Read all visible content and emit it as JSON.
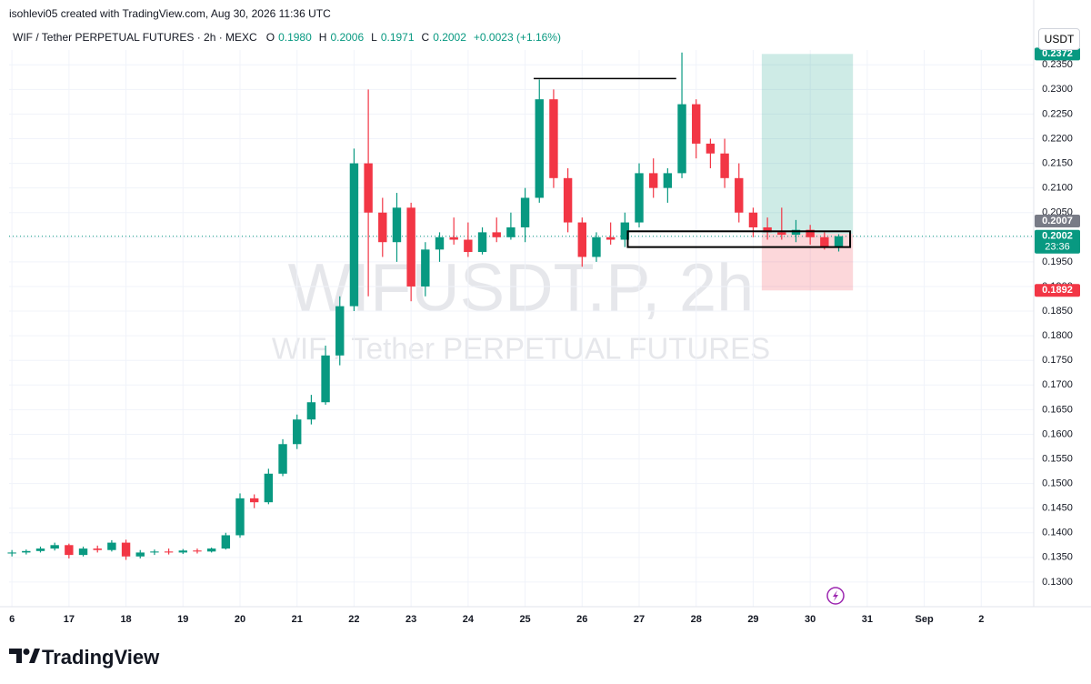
{
  "page": {
    "credit": "isohlevi05 created with TradingView.com, Aug 30, 2026 11:36 UTC",
    "brand": "TradingView",
    "currency_button": "USDT"
  },
  "header": {
    "symbol": "WIF / Tether PERPETUAL FUTURES · 2h · MEXC",
    "ohlc": [
      {
        "label": "O",
        "value": "0.1980"
      },
      {
        "label": "H",
        "value": "0.2006"
      },
      {
        "label": "L",
        "value": "0.1971"
      },
      {
        "label": "C",
        "value": "0.2002"
      }
    ],
    "change": "+0.0023 (+1.16%)"
  },
  "chart_data": {
    "type": "candlestick",
    "watermark": "WIFUSDT.P, 2h",
    "watermark_sub": "WIF / Tether PERPETUAL FUTURES",
    "up_color": "#089981",
    "down_color": "#f23645",
    "grid": true,
    "xlim": [
      15.95,
      33.92
    ],
    "ylim": [
      0.125,
      0.238
    ],
    "xticks": [
      {
        "value": 16,
        "label": "6"
      },
      17,
      18,
      19,
      20,
      21,
      22,
      23,
      24,
      25,
      26,
      27,
      28,
      29,
      30,
      31,
      {
        "value": 32,
        "label": "Sep"
      },
      {
        "value": 33,
        "label": "2"
      }
    ],
    "yticks": [
      {
        "value": 0.13,
        "label": "0.1300"
      },
      {
        "value": 0.135,
        "label": "0.1350"
      },
      {
        "value": 0.14,
        "label": "0.1400"
      },
      {
        "value": 0.145,
        "label": "0.1450"
      },
      {
        "value": 0.15,
        "label": "0.1500"
      },
      {
        "value": 0.155,
        "label": "0.1550"
      },
      {
        "value": 0.16,
        "label": "0.1600"
      },
      {
        "value": 0.165,
        "label": "0.1650"
      },
      {
        "value": 0.17,
        "label": "0.1700"
      },
      {
        "value": 0.175,
        "label": "0.1750"
      },
      {
        "value": 0.18,
        "label": "0.1800"
      },
      {
        "value": 0.185,
        "label": "0.1850"
      },
      {
        "value": 0.19,
        "label": "0.1900"
      },
      {
        "value": 0.195,
        "label": "0.1950"
      },
      {
        "value": 0.2,
        "label": "0.2000"
      },
      {
        "value": 0.205,
        "label": "0.2050"
      },
      {
        "value": 0.21,
        "label": "0.2100"
      },
      {
        "value": 0.215,
        "label": "0.2150"
      },
      {
        "value": 0.22,
        "label": "0.2200"
      },
      {
        "value": 0.225,
        "label": "0.2250"
      },
      {
        "value": 0.23,
        "label": "0.2300"
      },
      {
        "value": 0.235,
        "label": "0.2350"
      }
    ],
    "x": [
      16,
      16.25,
      16.5,
      16.75,
      17,
      17.25,
      17.5,
      17.75,
      18,
      18.25,
      18.5,
      18.75,
      19,
      19.25,
      19.5,
      19.75,
      20,
      20.25,
      20.5,
      20.75,
      21,
      21.25,
      21.5,
      21.75,
      22,
      22.25,
      22.5,
      22.75,
      23,
      23.25,
      23.5,
      23.75,
      24,
      24.25,
      24.5,
      24.75,
      25,
      25.25,
      25.5,
      25.75,
      26,
      26.25,
      26.5,
      26.75,
      27,
      27.25,
      27.5,
      27.75,
      28,
      28.25,
      28.5,
      28.75,
      29,
      29.25,
      29.5,
      29.75,
      30,
      30.25,
      30.5
    ],
    "open": [
      0.1358,
      0.136,
      0.1363,
      0.1368,
      0.1375,
      0.1355,
      0.1368,
      0.1365,
      0.138,
      0.1352,
      0.136,
      0.1362,
      0.136,
      0.1364,
      0.1362,
      0.1368,
      0.1395,
      0.147,
      0.1462,
      0.152,
      0.158,
      0.163,
      0.1665,
      0.176,
      0.186,
      0.215,
      0.205,
      0.199,
      0.206,
      0.19,
      0.1975,
      0.2,
      0.1995,
      0.197,
      0.201,
      0.2,
      0.202,
      0.208,
      0.228,
      0.212,
      0.203,
      0.196,
      0.2,
      0.1995,
      0.203,
      0.213,
      0.21,
      0.213,
      0.227,
      0.219,
      0.217,
      0.212,
      0.205,
      0.202,
      0.201,
      0.2005,
      0.2015,
      0.2,
      0.198
    ],
    "high": [
      0.1365,
      0.1366,
      0.1372,
      0.138,
      0.1378,
      0.1372,
      0.1374,
      0.1385,
      0.1386,
      0.1365,
      0.1366,
      0.1368,
      0.1367,
      0.1368,
      0.137,
      0.14,
      0.148,
      0.1478,
      0.153,
      0.159,
      0.164,
      0.168,
      0.178,
      0.188,
      0.218,
      0.23,
      0.208,
      0.209,
      0.207,
      0.199,
      0.201,
      0.204,
      0.203,
      0.202,
      0.204,
      0.205,
      0.21,
      0.232,
      0.23,
      0.214,
      0.204,
      0.201,
      0.203,
      0.205,
      0.215,
      0.216,
      0.214,
      0.2375,
      0.228,
      0.22,
      0.22,
      0.215,
      0.206,
      0.204,
      0.206,
      0.2035,
      0.2025,
      0.201,
      0.2006
    ],
    "low": [
      0.1352,
      0.1356,
      0.136,
      0.1364,
      0.1348,
      0.1352,
      0.136,
      0.1362,
      0.1345,
      0.1348,
      0.1355,
      0.1356,
      0.1357,
      0.1358,
      0.136,
      0.1366,
      0.139,
      0.145,
      0.1458,
      0.1515,
      0.157,
      0.162,
      0.166,
      0.174,
      0.185,
      0.188,
      0.196,
      0.195,
      0.187,
      0.188,
      0.195,
      0.1985,
      0.196,
      0.1965,
      0.199,
      0.1995,
      0.199,
      0.207,
      0.21,
      0.201,
      0.194,
      0.195,
      0.1985,
      0.198,
      0.202,
      0.208,
      0.207,
      0.212,
      0.216,
      0.214,
      0.21,
      0.203,
      0.2,
      0.1995,
      0.1995,
      0.199,
      0.1985,
      0.1975,
      0.1971
    ],
    "close": [
      0.136,
      0.1363,
      0.1368,
      0.1375,
      0.1355,
      0.1368,
      0.1365,
      0.138,
      0.1352,
      0.136,
      0.1362,
      0.136,
      0.1364,
      0.1362,
      0.1368,
      0.1395,
      0.147,
      0.1462,
      0.152,
      0.158,
      0.163,
      0.1665,
      0.176,
      0.186,
      0.215,
      0.205,
      0.199,
      0.206,
      0.19,
      0.1975,
      0.2,
      0.1995,
      0.197,
      0.201,
      0.2,
      0.202,
      0.208,
      0.228,
      0.212,
      0.203,
      0.196,
      0.2,
      0.1995,
      0.203,
      0.213,
      0.21,
      0.213,
      0.227,
      0.219,
      0.217,
      0.212,
      0.205,
      0.202,
      0.201,
      0.2005,
      0.2015,
      0.2,
      0.198,
      0.2002
    ],
    "last_price": {
      "value": 0.2002,
      "label": "0.2002",
      "countdown": "23:36"
    },
    "position": {
      "x": [
        29.15,
        30.75
      ],
      "target": 0.2372,
      "target_label": "0.2372",
      "entry": 0.2007,
      "entry_label": "0.2007",
      "stop": 0.1892,
      "stop_label": "0.1892"
    },
    "zone": {
      "x": [
        26.8,
        30.7
      ],
      "y": [
        0.198,
        0.2012
      ]
    },
    "level": {
      "x": [
        25.15,
        27.65
      ],
      "y": 0.2322
    }
  }
}
